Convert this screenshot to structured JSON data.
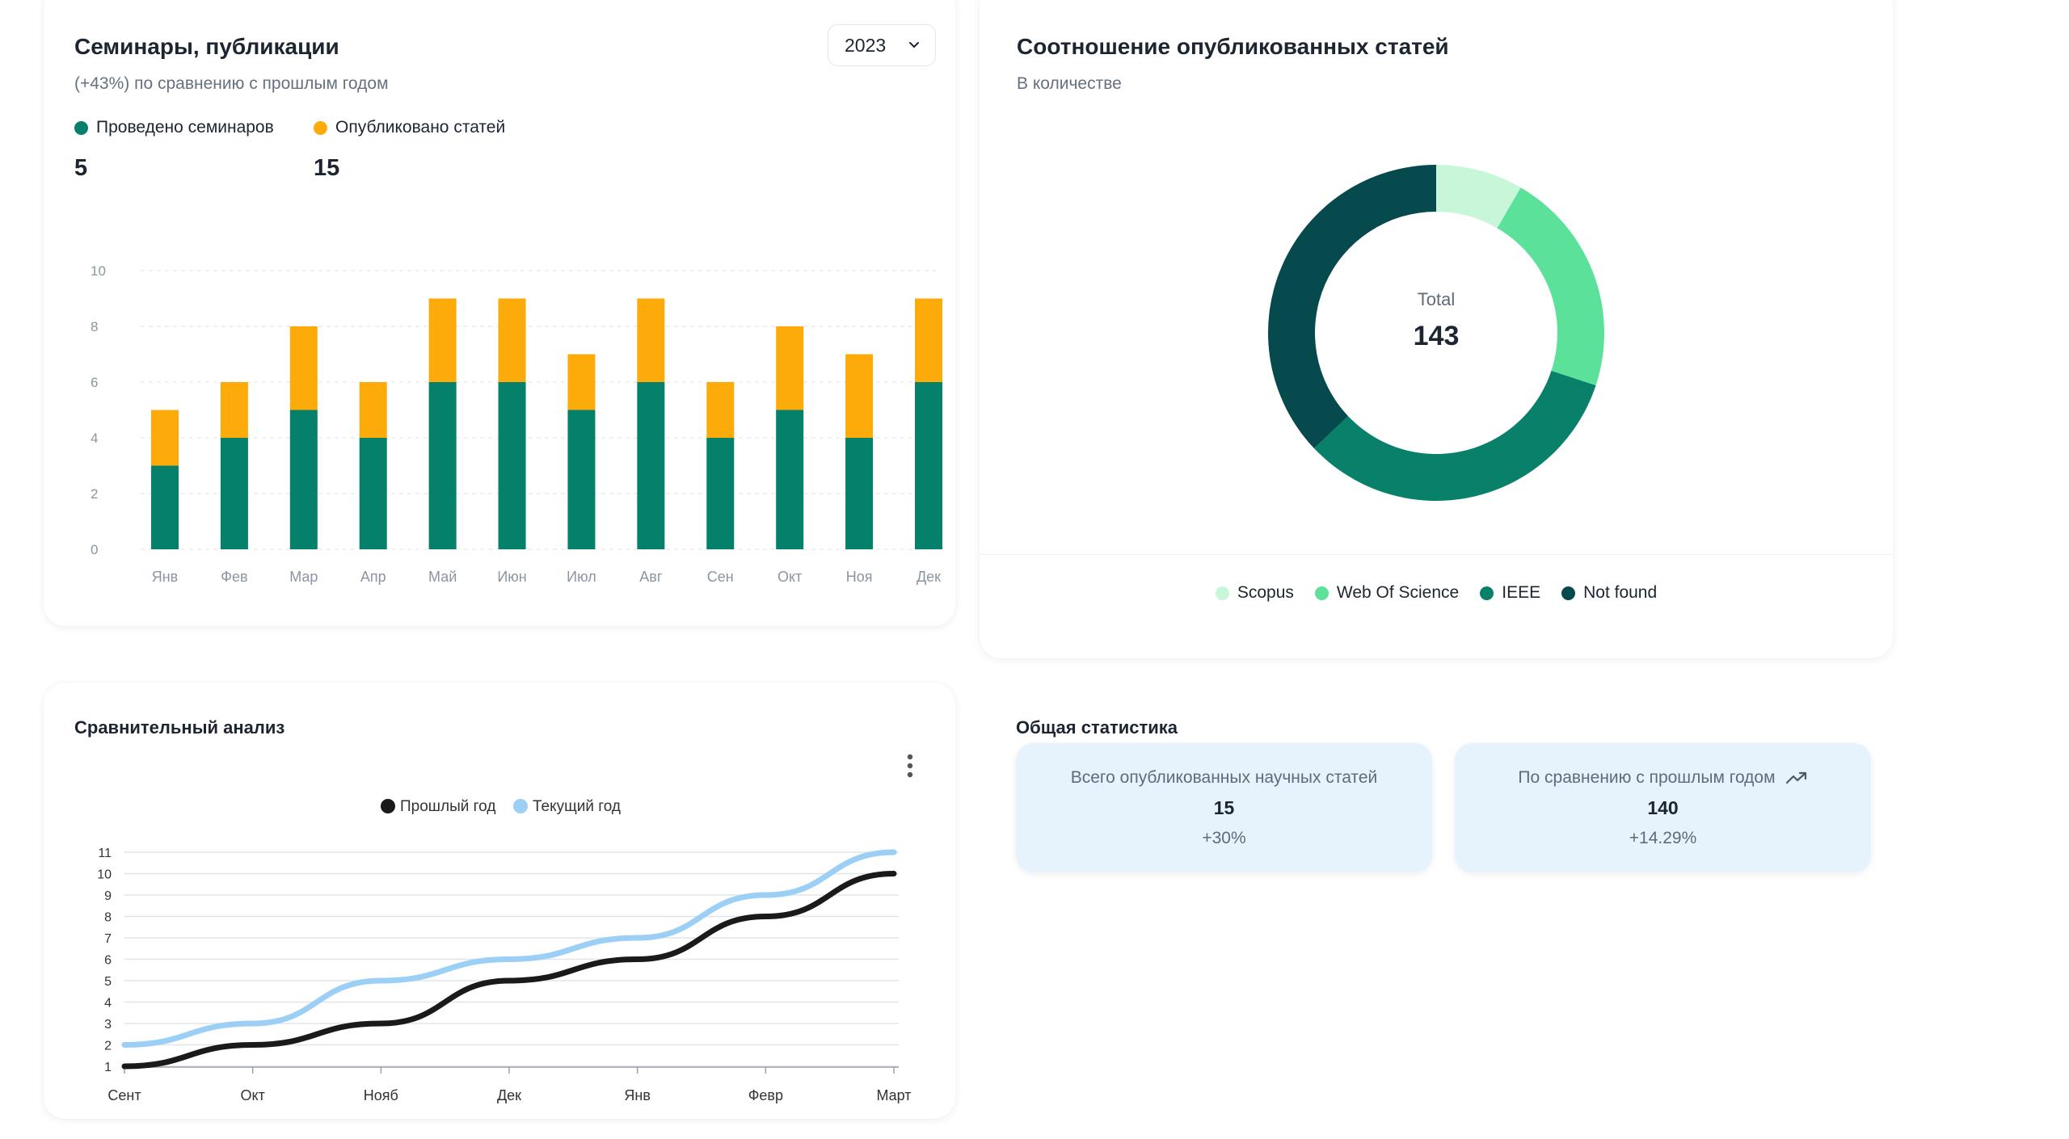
{
  "colors": {
    "seminars": "#05806a",
    "articles": "#fcab0a",
    "scopus": "#c8f6d9",
    "wos": "#5be19a",
    "ieee": "#08806a",
    "not_found": "#064a4e",
    "last_year": "#1a1a1a",
    "current_year": "#9ccff6"
  },
  "bar_card": {
    "title": "Семинары, публикации",
    "subtitle": "(+43%) по сравнению с прошлым годом",
    "year_select": {
      "value": "2023",
      "icon": "chevron-down-icon"
    },
    "legend": [
      {
        "label": "Проведено семинаров",
        "value": "5"
      },
      {
        "label": "Опубликовано статей",
        "value": "15"
      }
    ]
  },
  "donut_card": {
    "title": "Соотношение опубликованных статей",
    "subtitle": "В количестве",
    "center_label": "Total",
    "center_value": "143"
  },
  "line_card": {
    "title": "Сравнительный анализ",
    "menu_icon": "kebab-menu-icon"
  },
  "stats": {
    "title": "Общая статистика",
    "cards": [
      {
        "label": "Всего опубликованных научных статей",
        "value": "15",
        "delta": "+30%"
      },
      {
        "label": "По сравнению с прошлым годом",
        "value": "140",
        "delta": "+14.29%",
        "icon": "trending-up-icon"
      }
    ]
  },
  "chart_data": [
    {
      "type": "bar",
      "stacked": true,
      "categories": [
        "Янв",
        "Фев",
        "Мар",
        "Апр",
        "Май",
        "Июн",
        "Июл",
        "Авг",
        "Сен",
        "Окт",
        "Ноя",
        "Дек"
      ],
      "series": [
        {
          "name": "Проведено семинаров",
          "values": [
            3,
            4,
            5,
            4,
            6,
            6,
            5,
            6,
            4,
            5,
            4,
            6
          ]
        },
        {
          "name": "Опубликовано статей",
          "values": [
            2,
            2,
            3,
            2,
            3,
            3,
            2,
            3,
            2,
            3,
            3,
            3
          ]
        }
      ],
      "yticks": [
        0,
        2,
        4,
        6,
        8,
        10
      ],
      "ylim": [
        0,
        10
      ],
      "grid": true
    },
    {
      "type": "pie",
      "donut": true,
      "labels": [
        "Scopus",
        "Web Of Science",
        "IEEE",
        "Not found"
      ],
      "values": [
        12,
        31,
        47,
        53
      ],
      "legend_position": "bottom"
    },
    {
      "type": "line",
      "categories": [
        "Сент",
        "Окт",
        "Нояб",
        "Дек",
        "Янв",
        "Февр",
        "Март"
      ],
      "series": [
        {
          "name": "Прошлый год",
          "values": [
            1,
            2,
            3,
            5,
            6,
            8,
            10
          ]
        },
        {
          "name": "Текущий год",
          "values": [
            2,
            3,
            5,
            6,
            7,
            9,
            11
          ]
        }
      ],
      "yticks": [
        1,
        2,
        3,
        4,
        5,
        6,
        7,
        8,
        9,
        10,
        11
      ],
      "ylim": [
        1,
        11
      ],
      "legend_position": "top",
      "grid": true
    }
  ]
}
